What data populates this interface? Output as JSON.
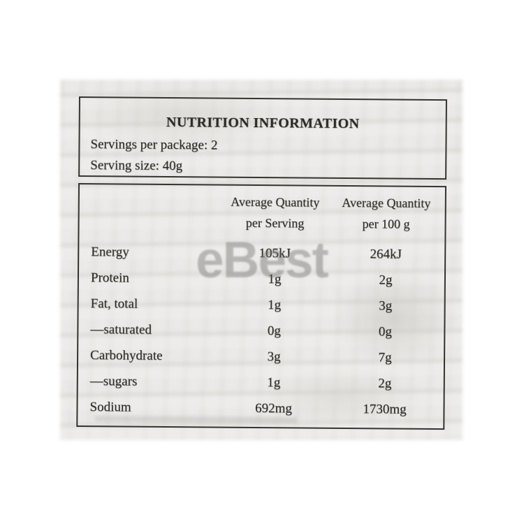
{
  "watermark": {
    "text": "eBest"
  },
  "colors": {
    "package_bg": "#e9e8e6",
    "label_border": "#35332f",
    "label_text": "#2b2924",
    "watermark_color": "#6f6f6d"
  },
  "label": {
    "title": "NUTRITION INFORMATION",
    "servings_per_package": "Servings per package: 2",
    "serving_size": "Serving size: 40g",
    "columns": {
      "per_serving_line1": "Average Quantity",
      "per_serving_line2": "per Serving",
      "per_100g_line1": "Average Quantity",
      "per_100g_line2": "per 100 g"
    },
    "rows": [
      {
        "nutrient": "Energy",
        "per_serving": "105kJ",
        "per_100g": "264kJ"
      },
      {
        "nutrient": "Protein",
        "per_serving": "1g",
        "per_100g": "2g"
      },
      {
        "nutrient": "Fat, total",
        "per_serving": "1g",
        "per_100g": "3g"
      },
      {
        "nutrient": "—saturated",
        "per_serving": "0g",
        "per_100g": "0g"
      },
      {
        "nutrient": "Carbohydrate",
        "per_serving": "3g",
        "per_100g": "7g"
      },
      {
        "nutrient": "—sugars",
        "per_serving": "1g",
        "per_100g": "2g"
      },
      {
        "nutrient": "Sodium",
        "per_serving": "692mg",
        "per_100g": "1730mg"
      }
    ]
  }
}
